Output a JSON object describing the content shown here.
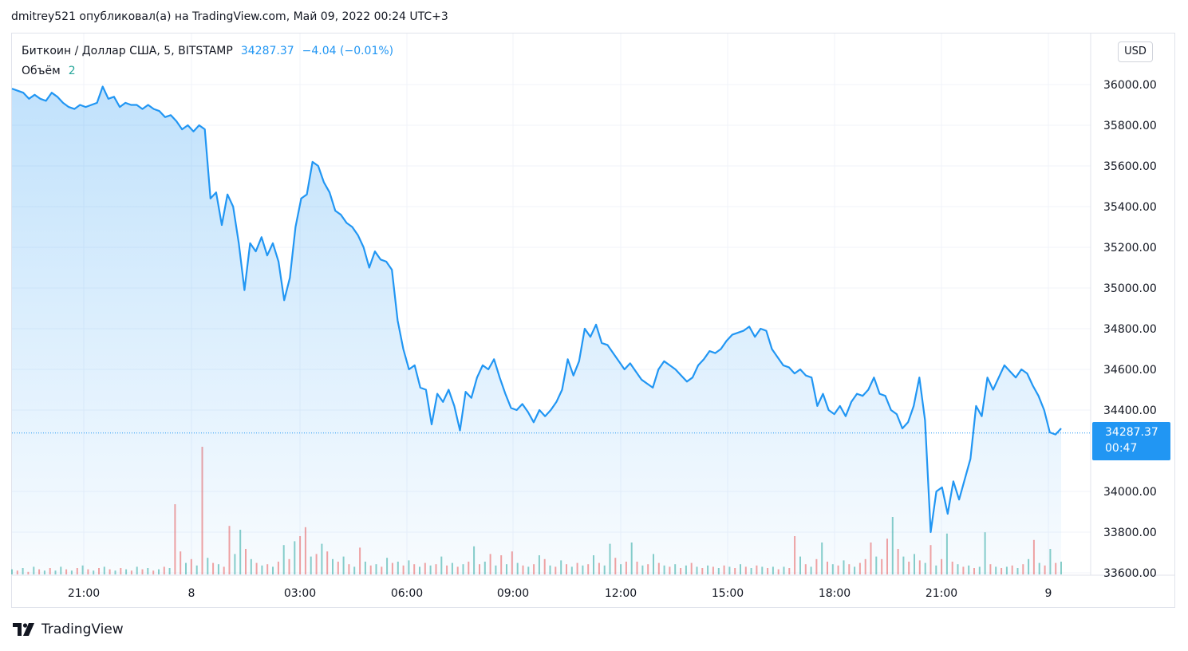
{
  "header": {
    "text": "dmitrey521 опубликовал(а) на TradingView.com, Май 09, 2022 00:24 UTC+3"
  },
  "legend": {
    "symbol": "Биткоин / Доллар США, 5, BITSTAMP",
    "price": "34287.37",
    "change": "−4.04 (−0.01%)",
    "volume_label": "Объём",
    "volume_value": "2"
  },
  "currency_button": "USD",
  "last_price_tag": {
    "price": "34287.37",
    "countdown": "00:47"
  },
  "footer": {
    "brand": "TradingView",
    "logo_icon": "tradingview-logo-icon"
  },
  "colors": {
    "line": "#2196f3",
    "vol_up": "#26a69a",
    "vol_down": "#ef5350",
    "grid": "#f0f3fa"
  },
  "chart_data": {
    "type": "area",
    "ylim": [
      33600,
      36200
    ],
    "y_ticks": [
      "36000.00",
      "35800.00",
      "35600.00",
      "35400.00",
      "35200.00",
      "35000.00",
      "34800.00",
      "34600.00",
      "34400.00",
      "34000.00",
      "33800.00",
      "33600.00"
    ],
    "x_ticks": [
      "21:00",
      "8",
      "03:00",
      "06:00",
      "09:00",
      "12:00",
      "15:00",
      "18:00",
      "21:00",
      "9"
    ],
    "series": [
      {
        "values": [
          35980,
          35970,
          35960,
          35930,
          35950,
          35930,
          35920,
          35960,
          35940,
          35910,
          35890,
          35880,
          35900,
          35890,
          35900,
          35910,
          35990,
          35930,
          35940,
          35890,
          35910,
          35900,
          35900,
          35880,
          35900,
          35880,
          35870,
          35840,
          35850,
          35820,
          35780,
          35800,
          35770,
          35800,
          35780,
          35440,
          35470,
          35310,
          35460,
          35400,
          35220,
          34990,
          35220,
          35180,
          35250,
          35160,
          35220,
          35130,
          34940,
          35050,
          35300,
          35440,
          35460,
          35620,
          35600,
          35520,
          35470,
          35380,
          35360,
          35320,
          35300,
          35260,
          35200,
          35100,
          35180,
          35140,
          35130,
          35090,
          34840,
          34700,
          34600,
          34620,
          34510,
          34500,
          34330,
          34480,
          34440,
          34500,
          34420,
          34300,
          34490,
          34460,
          34560,
          34620,
          34600,
          34650,
          34560,
          34480,
          34410,
          34400,
          34430,
          34390,
          34340,
          34400,
          34370,
          34400,
          34440,
          34500,
          34650,
          34570,
          34640,
          34800,
          34760,
          34820,
          34730,
          34720,
          34680,
          34640,
          34600,
          34630,
          34590,
          34550,
          34530,
          34510,
          34600,
          34640,
          34620,
          34600,
          34570,
          34540,
          34560,
          34620,
          34650,
          34690,
          34680,
          34700,
          34740,
          34770,
          34780,
          34790,
          34810,
          34760,
          34800,
          34790,
          34700,
          34660,
          34620,
          34610,
          34580,
          34600,
          34570,
          34560,
          34420,
          34480,
          34400,
          34380,
          34420,
          34370,
          34440,
          34480,
          34470,
          34500,
          34560,
          34480,
          34470,
          34400,
          34380,
          34310,
          34340,
          34420,
          34560,
          34350,
          33800,
          34000,
          34020,
          33890,
          34050,
          33960,
          34060,
          34160,
          34420,
          34370,
          34560,
          34500,
          34560,
          34620,
          34590,
          34560,
          34600,
          34580,
          34520,
          34470,
          34400,
          34290,
          34280,
          34310
        ]
      }
    ],
    "volume": [
      {
        "v": 0.4,
        "c": "up"
      },
      {
        "v": 0.3,
        "c": "down"
      },
      {
        "v": 0.5,
        "c": "up"
      },
      {
        "v": 0.2,
        "c": "down"
      },
      {
        "v": 0.6,
        "c": "up"
      },
      {
        "v": 0.4,
        "c": "down"
      },
      {
        "v": 0.3,
        "c": "up"
      },
      {
        "v": 0.5,
        "c": "down"
      },
      {
        "v": 0.3,
        "c": "up"
      },
      {
        "v": 0.6,
        "c": "up"
      },
      {
        "v": 0.4,
        "c": "down"
      },
      {
        "v": 0.3,
        "c": "up"
      },
      {
        "v": 0.5,
        "c": "down"
      },
      {
        "v": 0.7,
        "c": "up"
      },
      {
        "v": 0.4,
        "c": "down"
      },
      {
        "v": 0.3,
        "c": "up"
      },
      {
        "v": 0.5,
        "c": "down"
      },
      {
        "v": 0.6,
        "c": "up"
      },
      {
        "v": 0.4,
        "c": "down"
      },
      {
        "v": 0.3,
        "c": "up"
      },
      {
        "v": 0.5,
        "c": "down"
      },
      {
        "v": 0.4,
        "c": "up"
      },
      {
        "v": 0.3,
        "c": "down"
      },
      {
        "v": 0.6,
        "c": "up"
      },
      {
        "v": 0.4,
        "c": "down"
      },
      {
        "v": 0.5,
        "c": "up"
      },
      {
        "v": 0.3,
        "c": "down"
      },
      {
        "v": 0.4,
        "c": "up"
      },
      {
        "v": 0.6,
        "c": "down"
      },
      {
        "v": 0.5,
        "c": "up"
      },
      {
        "v": 5.5,
        "c": "down"
      },
      {
        "v": 1.8,
        "c": "down"
      },
      {
        "v": 0.9,
        "c": "up"
      },
      {
        "v": 1.2,
        "c": "down"
      },
      {
        "v": 0.7,
        "c": "up"
      },
      {
        "v": 10,
        "c": "down"
      },
      {
        "v": 1.3,
        "c": "up"
      },
      {
        "v": 0.9,
        "c": "down"
      },
      {
        "v": 0.8,
        "c": "up"
      },
      {
        "v": 0.6,
        "c": "down"
      },
      {
        "v": 3.8,
        "c": "down"
      },
      {
        "v": 1.6,
        "c": "up"
      },
      {
        "v": 3.5,
        "c": "up"
      },
      {
        "v": 2.0,
        "c": "down"
      },
      {
        "v": 1.2,
        "c": "up"
      },
      {
        "v": 0.9,
        "c": "down"
      },
      {
        "v": 0.7,
        "c": "up"
      },
      {
        "v": 0.8,
        "c": "down"
      },
      {
        "v": 0.6,
        "c": "up"
      },
      {
        "v": 1.0,
        "c": "down"
      },
      {
        "v": 2.3,
        "c": "up"
      },
      {
        "v": 1.2,
        "c": "down"
      },
      {
        "v": 2.6,
        "c": "up"
      },
      {
        "v": 3.0,
        "c": "down"
      },
      {
        "v": 3.7,
        "c": "down"
      },
      {
        "v": 1.4,
        "c": "up"
      },
      {
        "v": 1.6,
        "c": "down"
      },
      {
        "v": 2.4,
        "c": "up"
      },
      {
        "v": 1.8,
        "c": "down"
      },
      {
        "v": 1.2,
        "c": "up"
      },
      {
        "v": 1.0,
        "c": "down"
      },
      {
        "v": 1.4,
        "c": "up"
      },
      {
        "v": 0.8,
        "c": "down"
      },
      {
        "v": 0.6,
        "c": "up"
      },
      {
        "v": 2.1,
        "c": "down"
      },
      {
        "v": 1.0,
        "c": "up"
      },
      {
        "v": 0.7,
        "c": "down"
      },
      {
        "v": 0.8,
        "c": "up"
      },
      {
        "v": 0.6,
        "c": "down"
      },
      {
        "v": 1.3,
        "c": "up"
      },
      {
        "v": 0.9,
        "c": "down"
      },
      {
        "v": 1.0,
        "c": "up"
      },
      {
        "v": 0.7,
        "c": "down"
      },
      {
        "v": 1.1,
        "c": "up"
      },
      {
        "v": 0.8,
        "c": "down"
      },
      {
        "v": 0.6,
        "c": "up"
      },
      {
        "v": 0.9,
        "c": "down"
      },
      {
        "v": 0.7,
        "c": "up"
      },
      {
        "v": 0.8,
        "c": "down"
      },
      {
        "v": 1.4,
        "c": "up"
      },
      {
        "v": 0.7,
        "c": "down"
      },
      {
        "v": 0.9,
        "c": "up"
      },
      {
        "v": 0.6,
        "c": "down"
      },
      {
        "v": 0.8,
        "c": "up"
      },
      {
        "v": 1.0,
        "c": "down"
      },
      {
        "v": 2.2,
        "c": "up"
      },
      {
        "v": 0.8,
        "c": "down"
      },
      {
        "v": 1.0,
        "c": "up"
      },
      {
        "v": 1.6,
        "c": "down"
      },
      {
        "v": 0.7,
        "c": "up"
      },
      {
        "v": 1.5,
        "c": "down"
      },
      {
        "v": 0.8,
        "c": "up"
      },
      {
        "v": 1.8,
        "c": "down"
      },
      {
        "v": 0.9,
        "c": "up"
      },
      {
        "v": 0.7,
        "c": "down"
      },
      {
        "v": 0.6,
        "c": "up"
      },
      {
        "v": 0.8,
        "c": "down"
      },
      {
        "v": 1.5,
        "c": "up"
      },
      {
        "v": 1.2,
        "c": "down"
      },
      {
        "v": 0.7,
        "c": "up"
      },
      {
        "v": 0.6,
        "c": "down"
      },
      {
        "v": 1.1,
        "c": "up"
      },
      {
        "v": 0.8,
        "c": "down"
      },
      {
        "v": 0.6,
        "c": "up"
      },
      {
        "v": 0.9,
        "c": "down"
      },
      {
        "v": 0.7,
        "c": "up"
      },
      {
        "v": 0.8,
        "c": "down"
      },
      {
        "v": 1.5,
        "c": "up"
      },
      {
        "v": 0.9,
        "c": "down"
      },
      {
        "v": 0.7,
        "c": "up"
      },
      {
        "v": 2.4,
        "c": "up"
      },
      {
        "v": 1.3,
        "c": "down"
      },
      {
        "v": 0.8,
        "c": "up"
      },
      {
        "v": 1.0,
        "c": "down"
      },
      {
        "v": 2.5,
        "c": "up"
      },
      {
        "v": 1.0,
        "c": "down"
      },
      {
        "v": 0.7,
        "c": "up"
      },
      {
        "v": 0.8,
        "c": "down"
      },
      {
        "v": 1.6,
        "c": "up"
      },
      {
        "v": 0.9,
        "c": "down"
      },
      {
        "v": 0.7,
        "c": "up"
      },
      {
        "v": 0.6,
        "c": "down"
      },
      {
        "v": 0.8,
        "c": "up"
      },
      {
        "v": 0.5,
        "c": "down"
      },
      {
        "v": 0.7,
        "c": "up"
      },
      {
        "v": 0.9,
        "c": "down"
      },
      {
        "v": 0.6,
        "c": "up"
      },
      {
        "v": 0.5,
        "c": "down"
      },
      {
        "v": 0.7,
        "c": "up"
      },
      {
        "v": 0.6,
        "c": "down"
      },
      {
        "v": 0.5,
        "c": "up"
      },
      {
        "v": 0.7,
        "c": "down"
      },
      {
        "v": 0.6,
        "c": "up"
      },
      {
        "v": 0.5,
        "c": "down"
      },
      {
        "v": 0.8,
        "c": "up"
      },
      {
        "v": 0.6,
        "c": "down"
      },
      {
        "v": 0.5,
        "c": "up"
      },
      {
        "v": 0.7,
        "c": "down"
      },
      {
        "v": 0.6,
        "c": "up"
      },
      {
        "v": 0.5,
        "c": "down"
      },
      {
        "v": 0.6,
        "c": "up"
      },
      {
        "v": 0.4,
        "c": "down"
      },
      {
        "v": 0.6,
        "c": "up"
      },
      {
        "v": 0.5,
        "c": "down"
      },
      {
        "v": 3.0,
        "c": "down"
      },
      {
        "v": 1.4,
        "c": "up"
      },
      {
        "v": 0.8,
        "c": "down"
      },
      {
        "v": 0.6,
        "c": "up"
      },
      {
        "v": 1.2,
        "c": "down"
      },
      {
        "v": 2.5,
        "c": "up"
      },
      {
        "v": 1.0,
        "c": "down"
      },
      {
        "v": 0.8,
        "c": "up"
      },
      {
        "v": 0.7,
        "c": "down"
      },
      {
        "v": 1.1,
        "c": "up"
      },
      {
        "v": 0.8,
        "c": "down"
      },
      {
        "v": 0.6,
        "c": "up"
      },
      {
        "v": 0.9,
        "c": "down"
      },
      {
        "v": 1.2,
        "c": "down"
      },
      {
        "v": 2.5,
        "c": "down"
      },
      {
        "v": 1.4,
        "c": "up"
      },
      {
        "v": 1.2,
        "c": "down"
      },
      {
        "v": 2.8,
        "c": "down"
      },
      {
        "v": 4.5,
        "c": "up"
      },
      {
        "v": 2.0,
        "c": "down"
      },
      {
        "v": 1.4,
        "c": "up"
      },
      {
        "v": 1.0,
        "c": "down"
      },
      {
        "v": 1.6,
        "c": "up"
      },
      {
        "v": 1.1,
        "c": "down"
      },
      {
        "v": 0.9,
        "c": "up"
      },
      {
        "v": 2.3,
        "c": "down"
      },
      {
        "v": 0.7,
        "c": "up"
      },
      {
        "v": 1.2,
        "c": "down"
      },
      {
        "v": 3.2,
        "c": "up"
      },
      {
        "v": 1.0,
        "c": "down"
      },
      {
        "v": 0.8,
        "c": "up"
      },
      {
        "v": 0.6,
        "c": "down"
      },
      {
        "v": 0.7,
        "c": "up"
      },
      {
        "v": 0.5,
        "c": "down"
      },
      {
        "v": 0.6,
        "c": "up"
      },
      {
        "v": 3.3,
        "c": "up"
      },
      {
        "v": 0.8,
        "c": "down"
      },
      {
        "v": 0.6,
        "c": "up"
      },
      {
        "v": 0.5,
        "c": "down"
      },
      {
        "v": 0.6,
        "c": "up"
      },
      {
        "v": 0.7,
        "c": "down"
      },
      {
        "v": 0.5,
        "c": "up"
      },
      {
        "v": 0.8,
        "c": "down"
      },
      {
        "v": 1.2,
        "c": "up"
      },
      {
        "v": 2.7,
        "c": "down"
      },
      {
        "v": 0.9,
        "c": "up"
      },
      {
        "v": 0.7,
        "c": "down"
      },
      {
        "v": 2.0,
        "c": "up"
      },
      {
        "v": 0.9,
        "c": "down"
      },
      {
        "v": 1.0,
        "c": "up"
      }
    ]
  }
}
